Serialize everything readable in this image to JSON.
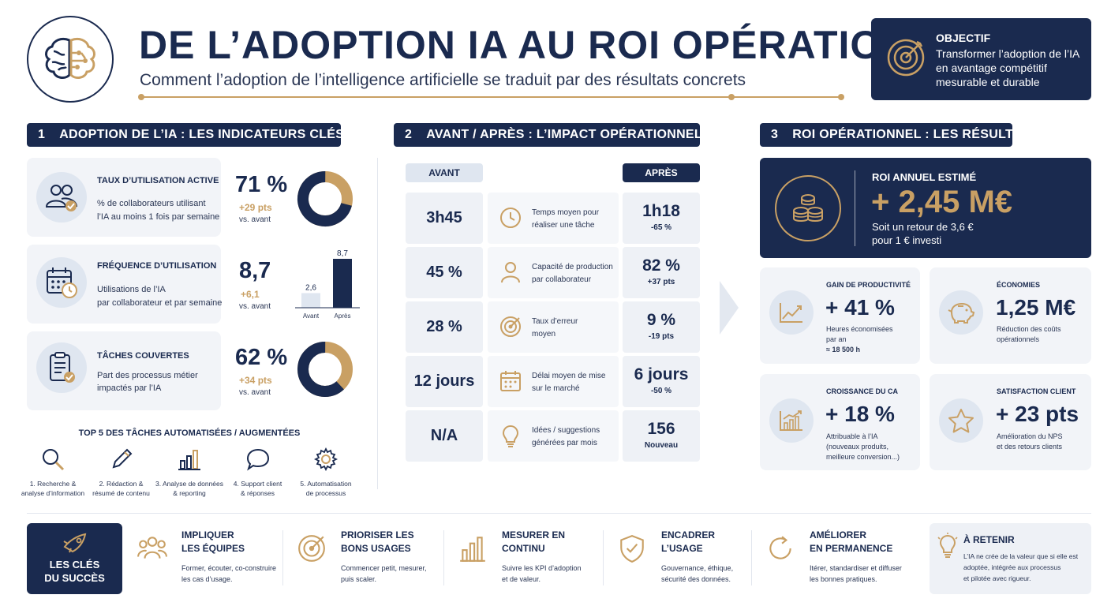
{
  "header": {
    "title": "DE L’ADOPTION IA AU ROI OPÉRATIONNEL",
    "subtitle": "Comment l’adoption de l’intelligence artificielle se traduit par des résultats concrets",
    "logo_icon": "brain-icon"
  },
  "objective": {
    "label": "OBJECTIF",
    "line1": "Transformer l’adoption de l’IA",
    "line2": "en avantage compétitif",
    "line3": "mesurable et durable",
    "icon": "target-icon"
  },
  "colors": {
    "navy": "#1a2a4f",
    "gold": "#c9a064",
    "light": "#f2f4f8"
  },
  "section1": {
    "num": "1",
    "title": "ADOPTION DE L’IA : LES INDICATEURS CLÉS",
    "kpis": [
      {
        "title": "TAUX D’UTILISATION ACTIVE",
        "desc1": "% de collaborateurs utilisant",
        "desc2": "l’IA au moins 1 fois par semaine",
        "value": "71 %",
        "delta": "+29 pts",
        "vs": "vs. avant",
        "icon": "users-icon",
        "donut_pct": 71
      },
      {
        "title": "FRÉQUENCE D’UTILISATION",
        "desc1": "Utilisations de l’IA",
        "desc2": "par collaborateur et par semaine",
        "value": "8,7",
        "delta": "+6,1",
        "vs": "vs. avant",
        "icon": "calendar-icon",
        "bars": {
          "before_value": 2.6,
          "after_value": 8.7,
          "before_label": "2,6",
          "after_label": "8,7",
          "before_name": "Avant",
          "after_name": "Après"
        }
      },
      {
        "title": "TÂCHES COUVERTES",
        "desc1": "Part des processus métier",
        "desc2": "impactés par l’IA",
        "value": "62 %",
        "delta": "+34 pts",
        "vs": "vs. avant",
        "icon": "checklist-icon",
        "donut_pct": 62
      }
    ],
    "top5_title": "TOP 5 DES TÂCHES AUTOMATISÉES / AUGMENTÉES",
    "top5": [
      {
        "l1": "1. Recherche &",
        "l2": "analyse d’information",
        "icon": "search-icon"
      },
      {
        "l1": "2. Rédaction &",
        "l2": "résumé de contenu",
        "icon": "pen-icon"
      },
      {
        "l1": "3. Analyse de données",
        "l2": "& reporting",
        "icon": "bar-chart-icon"
      },
      {
        "l1": "4. Support client",
        "l2": "& réponses",
        "icon": "chat-bubble-icon"
      },
      {
        "l1": "5. Automatisation",
        "l2": "de processus",
        "icon": "gear-icon"
      }
    ]
  },
  "section2": {
    "num": "2",
    "title": "AVANT / APRÈS : L’IMPACT OPÉRATIONNEL",
    "before_label": "AVANT",
    "after_label": "APRÈS",
    "rows": [
      {
        "before": "3h45",
        "l1": "Temps moyen pour",
        "l2": "réaliser une tâche",
        "after": "1h18",
        "after_sub": "-65 %",
        "icon": "clock-icon"
      },
      {
        "before": "45 %",
        "l1": "Capacité de production",
        "l2": "par collaborateur",
        "after": "82 %",
        "after_sub": "+37 pts",
        "icon": "person-icon"
      },
      {
        "before": "28 %",
        "l1": "Taux d’erreur",
        "l2": "moyen",
        "after": "9 %",
        "after_sub": "-19 pts",
        "icon": "target-icon"
      },
      {
        "before": "12 jours",
        "l1": "Délai moyen de mise",
        "l2": "sur le marché",
        "after": "6 jours",
        "after_sub": "-50 %",
        "icon": "calendar-icon"
      },
      {
        "before": "N/A",
        "l1": "Idées / suggestions",
        "l2": "générées par mois",
        "after": "156",
        "after_sub": "Nouveau",
        "icon": "lightbulb-icon"
      }
    ]
  },
  "section3": {
    "num": "3",
    "title": "ROI OPÉRATIONNEL : LES RÉSULTATS",
    "roi": {
      "label": "ROI ANNUEL ESTIMÉ",
      "value": "+ 2,45 M€",
      "l1": "Soit un retour de 3,6 €",
      "l2": "pour 1 € investi",
      "icon": "coins-icon"
    },
    "cards": [
      {
        "title": "GAIN DE PRODUCTIVITÉ",
        "value": "+ 41 %",
        "d1": "Heures économisées",
        "d2": "par an",
        "d3": "≈ 18 500 h",
        "icon": "line-chart-icon"
      },
      {
        "title": "ÉCONOMIES",
        "value": "1,25 M€",
        "d1": "Réduction des coûts",
        "d2": "opérationnels",
        "d3": "",
        "icon": "piggy-bank-icon"
      },
      {
        "title": "CROISSANCE DU CA",
        "value": "+ 18 %",
        "d1": "Attribuable à l’IA",
        "d2": "(nouveaux produits,",
        "d3": "meilleure conversion...)",
        "icon": "growth-chart-icon"
      },
      {
        "title": "SATISFACTION CLIENT",
        "value": "+ 23 pts",
        "d1": "Amélioration du NPS",
        "d2": "et des retours clients",
        "d3": "",
        "icon": "star-icon"
      }
    ]
  },
  "footer": {
    "keys_l1": "LES CLÉS",
    "keys_l2": "DU SUCCÈS",
    "keys_icon": "rocket-icon",
    "items": [
      {
        "t1": "IMPLIQUER",
        "t2": "LES ÉQUIPES",
        "d1": "Former, écouter, co-construire",
        "d2": "les cas d’usage.",
        "icon": "team-icon"
      },
      {
        "t1": "PRIORISER LES",
        "t2": "BONS USAGES",
        "d1": "Commencer petit, mesurer,",
        "d2": "puis scaler.",
        "icon": "target-icon"
      },
      {
        "t1": "MESURER EN",
        "t2": "CONTINU",
        "d1": "Suivre les KPI d’adoption",
        "d2": "et de valeur.",
        "icon": "bar-chart-icon"
      },
      {
        "t1": "ENCADRER",
        "t2": "L’USAGE",
        "d1": "Gouvernance, éthique,",
        "d2": "sécurité des données.",
        "icon": "shield-icon"
      },
      {
        "t1": "AMÉLIORER",
        "t2": "EN PERMANENCE",
        "d1": "Itérer, standardiser et diffuser",
        "d2": "les bonnes pratiques.",
        "icon": "cycle-icon"
      }
    ],
    "retain": {
      "title": "À RETENIR",
      "l1": "L’IA ne crée de la valeur que si elle est",
      "l2": "adoptée, intégrée aux processus",
      "l3": "et pilotée avec rigueur.",
      "icon": "lightbulb-icon"
    }
  }
}
